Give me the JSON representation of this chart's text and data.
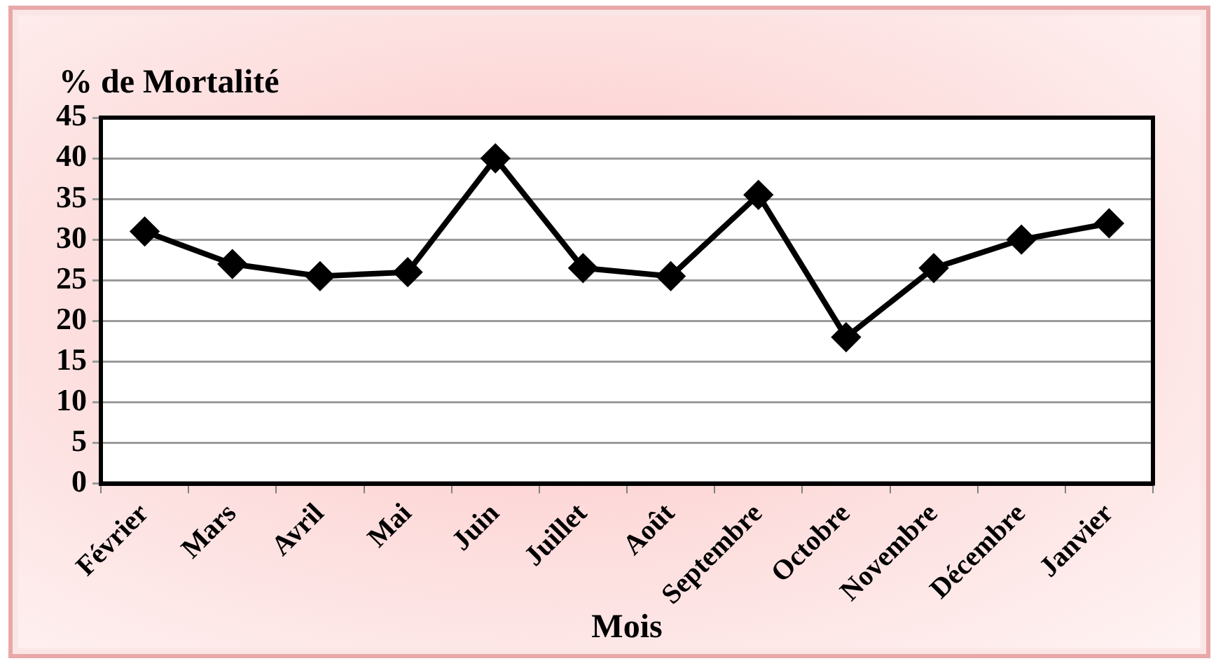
{
  "chart_data": {
    "type": "line",
    "ylabel": "% de Mortalité",
    "xlabel": "Mois",
    "categories": [
      "Février",
      "Mars",
      "Avril",
      "Mai",
      "Juin",
      "Juillet",
      "Août",
      "Septembre",
      "Octobre",
      "Novembre",
      "Décembre",
      "Janvier"
    ],
    "series": [
      {
        "color": "#000000",
        "values": [
          31,
          27,
          25.5,
          26,
          40,
          26.5,
          25.5,
          35.5,
          18,
          26.5,
          30,
          32
        ]
      }
    ],
    "ylim": [
      0,
      45
    ],
    "yticks": [
      0,
      5,
      10,
      15,
      20,
      25,
      30,
      35,
      40,
      45
    ],
    "grid": "y",
    "legend": false,
    "marker": "diamond",
    "line_style": "solid"
  }
}
